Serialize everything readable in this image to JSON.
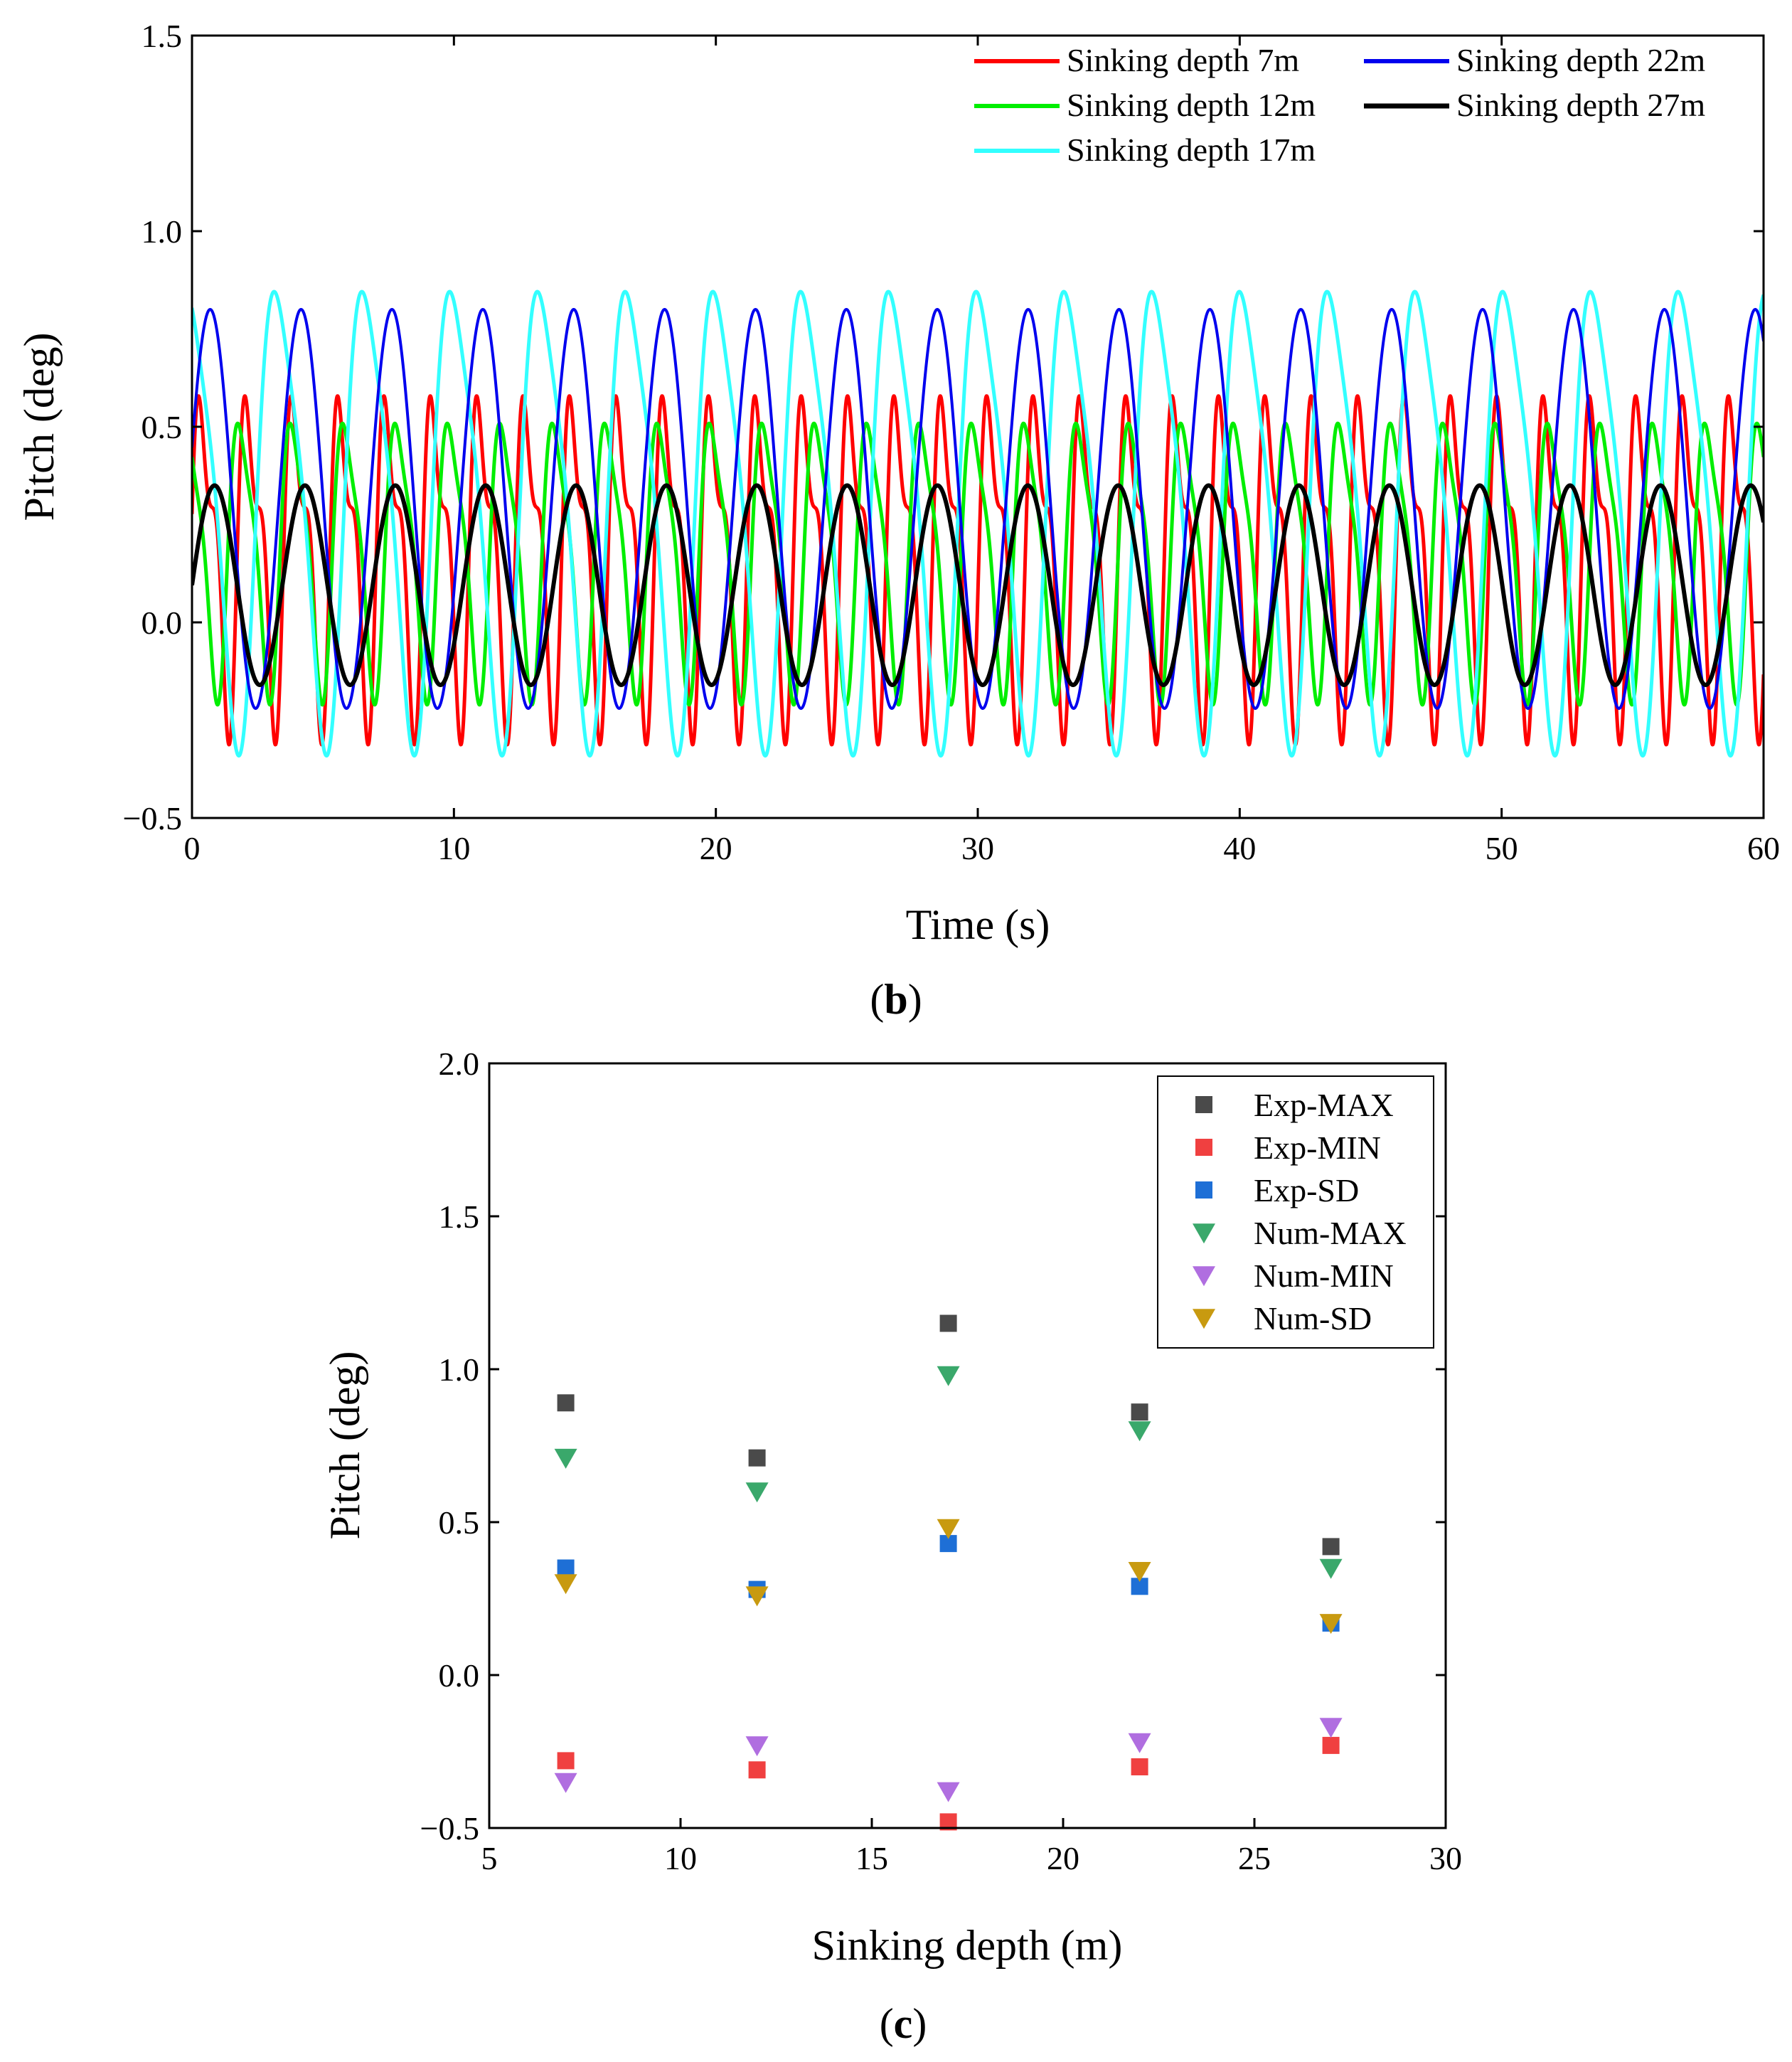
{
  "chart_data": [
    {
      "type": "line",
      "panel_label": "b",
      "xlabel": "Time (s)",
      "ylabel": "Pitch (deg)",
      "xlim": [
        0,
        60
      ],
      "ylim": [
        -0.5,
        1.5
      ],
      "xticks": [
        "0",
        "10",
        "20",
        "30",
        "40",
        "50",
        "60"
      ],
      "yticks": [
        "−0.5",
        "0.0",
        "0.5",
        "1.0",
        "1.5"
      ],
      "legend": "top-right",
      "series": [
        {
          "name": "Sinking depth 7m",
          "color": "#ff0000",
          "period_s": 1.77,
          "max": 0.71,
          "min": -0.34,
          "phase": 0.0,
          "harmonic": 0.45
        },
        {
          "name": "Sinking depth 12m",
          "color": "#00ee00",
          "period_s": 2.0,
          "max": 0.6,
          "min": -0.23,
          "phase": 0.3,
          "harmonic": 0.25
        },
        {
          "name": "Sinking depth 17m",
          "color": "#33ffff",
          "period_s": 3.35,
          "max": 0.98,
          "min": -0.37,
          "phase": 0.25,
          "harmonic": 0.2
        },
        {
          "name": "Sinking depth 22m",
          "color": "#0000ee",
          "period_s": 3.47,
          "max": 0.8,
          "min": -0.22,
          "phase": 0.05,
          "harmonic": 0.0
        },
        {
          "name": "Sinking depth 27m",
          "color": "#000000",
          "period_s": 3.45,
          "max": 0.35,
          "min": -0.16,
          "phase": 0.0,
          "harmonic": 0.0
        }
      ]
    },
    {
      "type": "scatter",
      "panel_label": "c",
      "xlabel": "Sinking depth (m)",
      "ylabel": "Pitch (deg)",
      "xlim": [
        5,
        30
      ],
      "ylim": [
        -0.5,
        2.0
      ],
      "xticks": [
        "5",
        "10",
        "15",
        "20",
        "25",
        "30"
      ],
      "yticks": [
        "−0.5",
        "0.0",
        "0.5",
        "1.0",
        "1.5",
        "2.0"
      ],
      "legend": "top-right",
      "x": [
        7,
        12,
        17,
        22,
        27
      ],
      "series": [
        {
          "name": "Exp-MAX",
          "marker": "square",
          "color": "#4a4a4a",
          "values": [
            0.89,
            0.71,
            1.15,
            0.86,
            0.42
          ]
        },
        {
          "name": "Exp-MIN",
          "marker": "square",
          "color": "#f04040",
          "values": [
            -0.28,
            -0.31,
            -0.48,
            -0.3,
            -0.23
          ]
        },
        {
          "name": "Exp-SD",
          "marker": "square",
          "color": "#1e6fd6",
          "values": [
            0.35,
            0.28,
            0.43,
            0.29,
            0.17
          ]
        },
        {
          "name": "Num-MAX",
          "marker": "triangle-down",
          "color": "#3aa86b",
          "values": [
            0.71,
            0.6,
            0.98,
            0.8,
            0.35
          ]
        },
        {
          "name": "Num-MIN",
          "marker": "triangle-down",
          "color": "#b06ee0",
          "values": [
            -0.35,
            -0.23,
            -0.38,
            -0.22,
            -0.17
          ]
        },
        {
          "name": "Num-SD",
          "marker": "triangle-down",
          "color": "#c89a10",
          "values": [
            0.3,
            0.26,
            0.48,
            0.34,
            0.17
          ]
        }
      ]
    }
  ]
}
